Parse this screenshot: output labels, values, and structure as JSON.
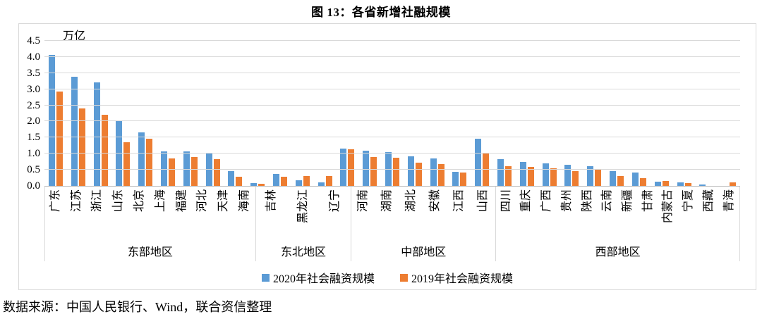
{
  "title": "图 13：各省新增社融规模",
  "source_note": "数据来源：中国人民银行、Wind，联合资信整理",
  "colors": {
    "series_2020": "#5B9BD5",
    "series_2019": "#ED7D31",
    "gridline": "#D9D9D9",
    "axis_line": "#BFBFBF",
    "frame_border": "#D9D9D9"
  },
  "chart_data": {
    "type": "bar",
    "title": "图 13：各省新增社融规模",
    "unit_label": "万亿",
    "ylim": [
      0,
      4.5
    ],
    "ytick_step": 0.5,
    "yticks": [
      "4.5",
      "4.0",
      "3.5",
      "3.0",
      "2.5",
      "2.0",
      "1.5",
      "1.0",
      "0.5",
      "0.0"
    ],
    "grid": true,
    "legend_position": "bottom",
    "legend": [
      {
        "name": "2020年社会融资规模",
        "color": "#5B9BD5"
      },
      {
        "name": "2019年社会融资规模",
        "color": "#ED7D31"
      }
    ],
    "regions": [
      {
        "name": "东部地区",
        "provinces": [
          "广东",
          "江苏",
          "浙江",
          "山东",
          "北京",
          "上海",
          "福建",
          "河北",
          "天津",
          "海南"
        ],
        "series": [
          {
            "name": "2020年社会融资规模",
            "values": [
              4.07,
              3.38,
              3.22,
              2.0,
              1.67,
              1.08,
              1.07,
              1.02,
              0.46,
              0.08
            ]
          },
          {
            "name": "2019年社会融资规模",
            "values": [
              2.93,
              2.4,
              2.2,
              1.35,
              1.46,
              0.85,
              0.9,
              0.83,
              0.29,
              0.07
            ]
          }
        ]
      },
      {
        "name": "东北地区",
        "provinces": [
          "吉林",
          "黑龙江",
          "辽宁"
        ],
        "series": [
          {
            "name": "2020年社会融资规模",
            "values": [
              0.38,
              0.18,
              0.11
            ]
          },
          {
            "name": "2019年社会融资规模",
            "values": [
              0.28,
              0.31,
              0.3
            ]
          }
        ]
      },
      {
        "name": "中部地区",
        "provinces": [
          "河南",
          "湖南",
          "湖北",
          "安徽",
          "江西",
          "山西"
        ],
        "series": [
          {
            "name": "2020年社会融资规模",
            "values": [
              1.15,
              1.09,
              1.04,
              0.92,
              0.85,
              0.44
            ]
          },
          {
            "name": "2019年社会融资规模",
            "values": [
              1.13,
              0.89,
              0.87,
              0.72,
              0.67,
              0.41
            ]
          }
        ]
      },
      {
        "name": "西部地区",
        "provinces": [
          "四川",
          "重庆",
          "广西",
          "贵州",
          "陕西",
          "云南",
          "新疆",
          "甘肃",
          "内蒙古",
          "宁夏",
          "西藏",
          "青海"
        ],
        "series": [
          {
            "name": "2020年社会融资规模",
            "values": [
              1.47,
              0.83,
              0.74,
              0.69,
              0.66,
              0.61,
              0.47,
              0.41,
              0.13,
              0.1,
              0.05,
              0.0
            ]
          },
          {
            "name": "2019年社会融资规模",
            "values": [
              1.0,
              0.62,
              0.58,
              0.55,
              0.47,
              0.51,
              0.3,
              0.25,
              0.15,
              0.08,
              0.0,
              0.11
            ]
          }
        ]
      }
    ]
  }
}
